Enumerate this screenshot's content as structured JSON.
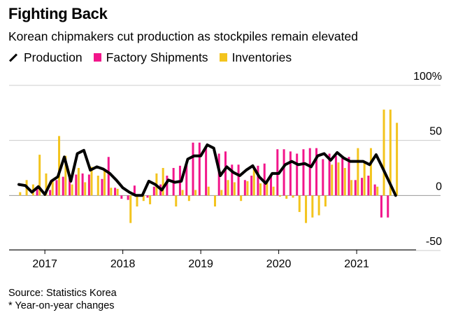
{
  "title": "Fighting Back",
  "subtitle": "Korean chipmakers cut production as stockpiles remain elevated",
  "legend": {
    "production": "Production",
    "shipments": "Factory Shipments",
    "inventories": "Inventories"
  },
  "colors": {
    "production": "#000000",
    "shipments": "#f2168b",
    "inventories": "#f3c41e",
    "grid": "#cccccc"
  },
  "source": "Source: Statistics Korea",
  "note": "* Year-on-year changes",
  "chart_data": {
    "type": "bar+line",
    "title": "Fighting Back",
    "x_start": "2016-09",
    "categories": [
      "2016-09",
      "2016-10",
      "2016-11",
      "2016-12",
      "2017-01",
      "2017-02",
      "2017-03",
      "2017-04",
      "2017-05",
      "2017-06",
      "2017-07",
      "2017-08",
      "2017-09",
      "2017-10",
      "2017-11",
      "2017-12",
      "2018-01",
      "2018-02",
      "2018-03",
      "2018-04",
      "2018-05",
      "2018-06",
      "2018-07",
      "2018-08",
      "2018-09",
      "2018-10",
      "2018-11",
      "2018-12",
      "2019-01",
      "2019-02",
      "2019-03",
      "2019-04",
      "2019-05",
      "2019-06",
      "2019-07",
      "2019-08",
      "2019-09",
      "2019-10",
      "2019-11",
      "2019-12",
      "2020-01",
      "2020-02",
      "2020-03",
      "2020-04",
      "2020-05",
      "2020-06",
      "2020-07",
      "2020-08",
      "2020-09",
      "2020-10",
      "2020-11",
      "2020-12",
      "2021-01",
      "2021-02",
      "2021-03",
      "2021-04",
      "2021-05",
      "2021-06",
      "2021-07"
    ],
    "x_tick_labels": [
      "2017",
      "2018",
      "2019",
      "2020",
      "2021"
    ],
    "y_tick_labels": [
      "100%",
      "50",
      "0",
      "-50"
    ],
    "ylim": [
      -50,
      100
    ],
    "y_ticks": [
      100,
      50,
      0,
      -50
    ],
    "grid": true,
    "xlabel": "",
    "ylabel": "",
    "series": [
      {
        "name": "Production",
        "type": "line",
        "values": [
          10,
          9,
          3,
          8,
          1,
          13,
          17,
          35,
          13,
          38,
          41,
          23,
          26,
          24,
          20,
          14,
          7,
          3,
          0,
          0,
          13,
          10,
          5,
          14,
          12,
          13,
          33,
          36,
          36,
          46,
          43,
          18,
          26,
          21,
          18,
          23,
          27,
          17,
          11,
          20,
          20,
          28,
          31,
          28,
          29,
          26,
          36,
          38,
          32,
          39,
          34,
          31,
          31,
          31,
          28,
          37,
          25,
          24,
          0
        ],
        "missing": [
          57
        ]
      },
      {
        "name": "Factory Shipments",
        "type": "bar",
        "values": [
          0,
          0,
          0,
          6,
          0,
          5,
          14,
          17,
          18,
          19,
          20,
          19,
          0,
          15,
          35,
          7,
          -3,
          -4,
          9,
          0,
          -2,
          8,
          10,
          18,
          25,
          27,
          30,
          48,
          48,
          45,
          0,
          38,
          40,
          28,
          28,
          14,
          18,
          27,
          29,
          18,
          42,
          42,
          40,
          38,
          42,
          43,
          43,
          33,
          38,
          36,
          34,
          35,
          14,
          16,
          18,
          10,
          -20,
          -20,
          0
        ]
      },
      {
        "name": "Inventories",
        "type": "bar",
        "values": [
          3,
          14,
          10,
          37,
          20,
          13,
          54,
          36,
          10,
          25,
          12,
          26,
          18,
          24,
          7,
          6,
          0,
          -25,
          -10,
          -5,
          -8,
          20,
          25,
          0,
          -10,
          5,
          -5,
          5,
          0,
          8,
          -10,
          5,
          14,
          12,
          -5,
          13,
          26,
          11,
          12,
          8,
          -1,
          -3,
          -2,
          -15,
          -25,
          -20,
          -18,
          -10,
          28,
          30,
          25,
          14,
          43,
          30,
          43,
          8,
          78,
          78,
          66
        ]
      }
    ]
  }
}
